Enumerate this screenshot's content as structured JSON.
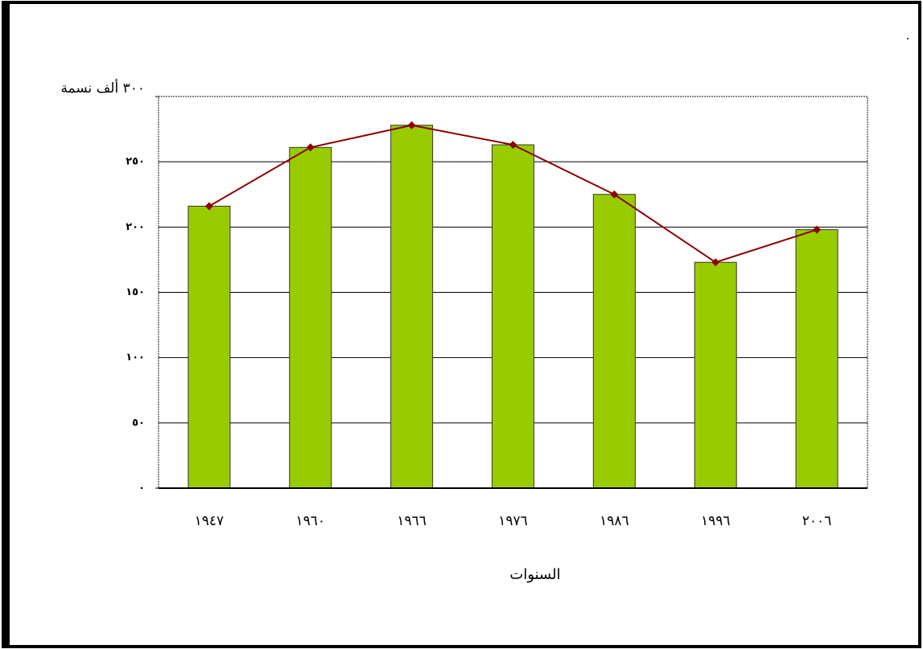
{
  "chart_data": {
    "type": "bar",
    "corner_note": "٠",
    "x_label": "السنوات",
    "categories": [
      "١٩٤٧",
      "١٩٦٠",
      "١٩٦٦",
      "١٩٧٦",
      "١٩٨٦",
      "١٩٩٦",
      "٢٠٠٦"
    ],
    "series": [
      {
        "type": "bar",
        "color": "#99cc00",
        "values": [
          216,
          261,
          278,
          263,
          225,
          173,
          198
        ]
      },
      {
        "type": "line",
        "color": "#8b0000",
        "values": [
          216,
          261,
          278,
          263,
          225,
          173,
          198
        ]
      }
    ],
    "ylim": [
      0,
      300
    ],
    "yticks": [
      {
        "value": 0,
        "label": "٠"
      },
      {
        "value": 50,
        "label": "٥٠"
      },
      {
        "value": 100,
        "label": "١٠٠"
      },
      {
        "value": 150,
        "label": "١٥٠"
      },
      {
        "value": 200,
        "label": "٢٠٠"
      },
      {
        "value": 250,
        "label": "٢٥٠"
      },
      {
        "value": 300,
        "label": "٣٠٠ ألف نسمة"
      }
    ],
    "grid": true
  }
}
